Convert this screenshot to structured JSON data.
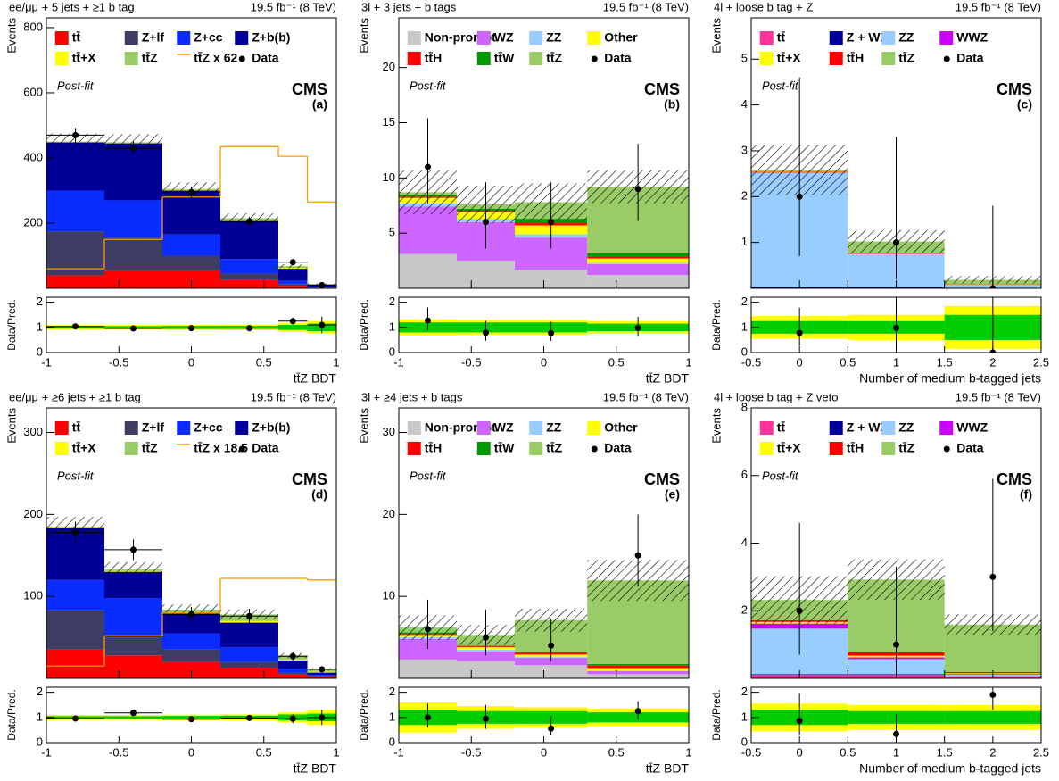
{
  "chart_data": [
    {
      "type": "histogram",
      "title": "ee/μμ + 5 jets + ≥1 b tag",
      "lumi": "19.5 fb⁻¹ (8 TeV)",
      "experiment": "CMS",
      "status": "Post-fit",
      "panel": "(a)",
      "ylabel": "Events",
      "xlabel": "tt̄Z BDT",
      "bins": [
        -1,
        -0.6,
        -0.2,
        0.2,
        0.6,
        0.8,
        1
      ],
      "xlim": [
        -1,
        1
      ],
      "xticks": [
        -1,
        -0.5,
        0,
        0.5,
        1
      ],
      "ylim": [
        0,
        830
      ],
      "yticks": [
        200,
        400,
        600,
        800
      ],
      "series": [
        {
          "name": "tt̄",
          "color": "#ff0000",
          "values": [
            40,
            55,
            55,
            25,
            8,
            2
          ]
        },
        {
          "name": "Z+lf",
          "color": "#3e3e64",
          "values": [
            135,
            100,
            45,
            20,
            5,
            1
          ]
        },
        {
          "name": "Z+cc",
          "color": "#0a2cff",
          "values": [
            125,
            115,
            65,
            45,
            10,
            2
          ]
        },
        {
          "name": "Z+b(b)",
          "color": "#000099",
          "values": [
            148,
            175,
            135,
            115,
            37,
            5
          ]
        },
        {
          "name": "tt̄+X",
          "color": "#ffff00",
          "values": [
            1,
            1,
            2,
            3,
            2,
            1
          ]
        },
        {
          "name": "tt̄Z",
          "color": "#99cc66",
          "values": [
            1,
            2,
            3,
            7,
            6,
            2
          ]
        }
      ],
      "overlay": {
        "name": "tt̄Z  x 62",
        "color": "#ff9900",
        "values": [
          60,
          150,
          280,
          435,
          405,
          265
        ]
      },
      "uncertainty": [
        25,
        25,
        20,
        15,
        6,
        2
      ],
      "data": {
        "name": "Data",
        "x": [
          -0.8,
          -0.4,
          0,
          0.4,
          0.7,
          0.9
        ],
        "values": [
          470,
          430,
          295,
          205,
          80,
          10
        ],
        "err_low": [
          22,
          21,
          17,
          14,
          9,
          3.3
        ],
        "err_high": [
          22,
          21,
          17,
          14,
          9,
          3.3
        ]
      },
      "data_xerr": true,
      "ratio": {
        "ylabel": "Data/Pred.",
        "ylim": [
          0,
          2.2
        ],
        "yticks": [
          0,
          1,
          2
        ],
        "values": [
          1.04,
          0.96,
          0.97,
          0.97,
          1.25,
          1.1
        ],
        "err_low": [
          0.05,
          0.05,
          0.06,
          0.07,
          0.14,
          0.33
        ],
        "err_high": [
          0.05,
          0.05,
          0.06,
          0.07,
          0.14,
          0.33
        ],
        "band_1sigma": [
          0.05,
          0.05,
          0.06,
          0.06,
          0.1,
          0.15
        ],
        "band_2sigma": [
          0.09,
          0.09,
          0.1,
          0.11,
          0.18,
          0.25
        ]
      }
    },
    {
      "type": "histogram",
      "title": "3l + 3 jets + b tags",
      "lumi": "19.5 fb⁻¹ (8 TeV)",
      "experiment": "CMS",
      "status": "Post-fit",
      "panel": "(b)",
      "ylabel": "Events",
      "xlabel": "tt̄Z BDT",
      "bins": [
        -1,
        -0.6,
        -0.2,
        0.3,
        1
      ],
      "xlim": [
        -1,
        1
      ],
      "xticks": [
        -1,
        -0.5,
        0,
        0.5,
        1
      ],
      "ylim": [
        0,
        24.5
      ],
      "yticks": [
        5,
        10,
        15,
        20
      ],
      "series": [
        {
          "name": "Non-prompt",
          "color": "#c8c8c8",
          "values": [
            3.1,
            2.5,
            1.7,
            1.2
          ]
        },
        {
          "name": "WZ",
          "color": "#cc66ff",
          "values": [
            4.3,
            3.5,
            2.9,
            1.0
          ]
        },
        {
          "name": "ZZ",
          "color": "#99ccff",
          "values": [
            0.3,
            0.3,
            0.3,
            0.1
          ]
        },
        {
          "name": "Other",
          "color": "#ffff00",
          "values": [
            0.5,
            0.6,
            0.8,
            0.4
          ]
        },
        {
          "name": "tt̄H",
          "color": "#ff0000",
          "values": [
            0.1,
            0.1,
            0.2,
            0.2
          ]
        },
        {
          "name": "tt̄W",
          "color": "#009900",
          "values": [
            0.2,
            0.2,
            0.4,
            0.3
          ]
        },
        {
          "name": "tt̄Z",
          "color": "#99cc66",
          "values": [
            0.2,
            0.4,
            1.5,
            6.0
          ]
        }
      ],
      "uncertainty": [
        2.0,
        1.7,
        1.7,
        1.5
      ],
      "data": {
        "name": "Data",
        "x": [
          -0.8,
          -0.4,
          0.05,
          0.65
        ],
        "values": [
          11,
          6,
          6,
          9
        ],
        "err_low": [
          3.3,
          2.4,
          2.4,
          2.9
        ],
        "err_high": [
          4.4,
          3.6,
          3.6,
          4.1
        ]
      },
      "data_xerr": false,
      "ratio": {
        "ylabel": "Data/Pred.",
        "ylim": [
          0,
          2.2
        ],
        "yticks": [
          0,
          1,
          2
        ],
        "values": [
          1.27,
          0.79,
          0.77,
          0.98
        ],
        "err_low": [
          0.38,
          0.32,
          0.31,
          0.32
        ],
        "err_high": [
          0.52,
          0.47,
          0.46,
          0.44
        ],
        "band_1sigma": [
          0.2,
          0.2,
          0.2,
          0.15
        ],
        "band_2sigma": [
          0.32,
          0.3,
          0.3,
          0.25
        ]
      }
    },
    {
      "type": "histogram",
      "title": "4l + loose b tag + Z",
      "lumi": "19.5 fb⁻¹ (8 TeV)",
      "experiment": "CMS",
      "status": "Post-fit",
      "panel": "(c)",
      "ylabel": "Events",
      "xlabel": "Number of medium b-tagged jets",
      "bins": [
        -0.5,
        0.5,
        1.5,
        2.5
      ],
      "xlim": [
        -0.5,
        2.5
      ],
      "xticks": [
        -0.5,
        0,
        0.5,
        1,
        1.5,
        2,
        2.5
      ],
      "ylim": [
        0,
        5.9
      ],
      "yticks": [
        1,
        2,
        3,
        4,
        5
      ],
      "series": [
        {
          "name": "tt̄",
          "color": "#ff3399",
          "values": [
            0.01,
            0.01,
            0.005
          ]
        },
        {
          "name": "Z + WZ",
          "color": "#000099",
          "values": [
            0.01,
            0.01,
            0.005
          ]
        },
        {
          "name": "ZZ",
          "color": "#99ccff",
          "values": [
            2.5,
            0.72,
            0.05
          ]
        },
        {
          "name": "WWZ",
          "color": "#cc00ff",
          "values": [
            0.01,
            0.01,
            0.005
          ]
        },
        {
          "name": "tt̄+X",
          "color": "#ffff00",
          "values": [
            0.01,
            0.01,
            0.01
          ]
        },
        {
          "name": "tt̄H",
          "color": "#ff0000",
          "values": [
            0.01,
            0.01,
            0.01
          ]
        },
        {
          "name": "tt̄Z",
          "color": "#99cc66",
          "values": [
            0.03,
            0.25,
            0.1
          ]
        }
      ],
      "uncertainty": [
        0.55,
        0.25,
        0.08
      ],
      "data": {
        "name": "Data",
        "x": [
          0,
          1,
          2
        ],
        "values": [
          2,
          1,
          0
        ],
        "err_low": [
          1.3,
          0.8,
          0
        ],
        "err_high": [
          2.6,
          2.3,
          1.8
        ]
      },
      "data_xerr": false,
      "ratio": {
        "ylabel": "Data/Pred.",
        "ylim": [
          0,
          2.2
        ],
        "yticks": [
          0,
          1,
          2
        ],
        "values": [
          0.78,
          0.98,
          0
        ],
        "err_low": [
          0.51,
          0.78,
          0
        ],
        "err_high": [
          1.0,
          2.25,
          12
        ],
        " band": null,
        "band_1sigma": [
          0.25,
          0.25,
          0.5
        ],
        "band_2sigma": [
          0.45,
          0.5,
          0.85
        ]
      }
    },
    {
      "type": "histogram",
      "title": "ee/μμ + ≥6 jets + ≥1 b tag",
      "lumi": "19.5 fb⁻¹ (8 TeV)",
      "experiment": "CMS",
      "status": "Post-fit",
      "panel": "(d)",
      "ylabel": "Events",
      "xlabel": "tt̄Z BDT",
      "bins": [
        -1,
        -0.6,
        -0.2,
        0.2,
        0.6,
        0.8,
        1
      ],
      "xlim": [
        -1,
        1
      ],
      "xticks": [
        -1,
        -0.5,
        0,
        0.5,
        1
      ],
      "ylim": [
        0,
        330
      ],
      "yticks": [
        100,
        200,
        300
      ],
      "series": [
        {
          "name": "tt̄",
          "color": "#ff0000",
          "values": [
            35,
            28,
            20,
            13,
            5,
            2
          ]
        },
        {
          "name": "Z+lf",
          "color": "#3e3e64",
          "values": [
            48,
            22,
            15,
            7,
            2,
            1
          ]
        },
        {
          "name": "Z+cc",
          "color": "#0a2cff",
          "values": [
            37,
            48,
            20,
            18,
            5,
            1
          ]
        },
        {
          "name": "Z+b(b)",
          "color": "#000099",
          "values": [
            63,
            32,
            24,
            30,
            10,
            3
          ]
        },
        {
          "name": "tt̄+X",
          "color": "#ffff00",
          "values": [
            1,
            1,
            1,
            2,
            1,
            1
          ]
        },
        {
          "name": "tt̄Z",
          "color": "#99cc66",
          "values": [
            1,
            2,
            4,
            8,
            5,
            3
          ]
        }
      ],
      "overlay": {
        "name": "tt̄Z  x 18.5",
        "color": "#ff9900",
        "values": [
          15,
          52,
          80,
          122,
          122,
          120
        ]
      },
      "uncertainty": [
        12,
        9,
        6,
        6,
        3,
        1.5
      ],
      "data": {
        "name": "Data",
        "x": [
          -0.8,
          -0.4,
          0,
          0.4,
          0.7,
          0.9
        ],
        "values": [
          178,
          157,
          78,
          76,
          27,
          11
        ],
        "err_low": [
          13,
          12.5,
          9,
          9,
          5.2,
          3.3
        ],
        "err_high": [
          13,
          12.5,
          9,
          9,
          5.2,
          3.3
        ]
      },
      "data_xerr": true,
      "ratio": {
        "ylabel": "Data/Pred.",
        "ylim": [
          0,
          2.2
        ],
        "yticks": [
          0,
          1,
          2
        ],
        "values": [
          0.96,
          1.18,
          0.93,
          0.98,
          0.95,
          1.0
        ],
        "err_low": [
          0.07,
          0.09,
          0.1,
          0.11,
          0.18,
          0.3
        ],
        "err_high": [
          0.07,
          0.09,
          0.1,
          0.11,
          0.18,
          0.3
        ],
        "band_1sigma": [
          0.05,
          0.05,
          0.06,
          0.07,
          0.12,
          0.15
        ],
        "band_2sigma": [
          0.1,
          0.1,
          0.11,
          0.12,
          0.2,
          0.3
        ]
      }
    },
    {
      "type": "histogram",
      "title": "3l + ≥4 jets + b tags",
      "lumi": "19.5 fb⁻¹ (8 TeV)",
      "experiment": "CMS",
      "status": "Post-fit",
      "panel": "(e)",
      "ylabel": "Events",
      "xlabel": "tt̄Z BDT",
      "bins": [
        -1,
        -0.6,
        -0.2,
        0.3,
        1
      ],
      "xlim": [
        -1,
        1
      ],
      "xticks": [
        -1,
        -0.5,
        0,
        0.5,
        1
      ],
      "ylim": [
        0,
        33
      ],
      "yticks": [
        10,
        20,
        30
      ],
      "series": [
        {
          "name": "Non-prompt",
          "color": "#c8c8c8",
          "values": [
            2.3,
            2.1,
            1.6,
            0.5
          ]
        },
        {
          "name": "WZ",
          "color": "#cc66ff",
          "values": [
            2.5,
            1.2,
            0.9,
            0.4
          ]
        },
        {
          "name": "ZZ",
          "color": "#99ccff",
          "values": [
            0.2,
            0.2,
            0.1,
            0.05
          ]
        },
        {
          "name": "Other",
          "color": "#ffff00",
          "values": [
            0.3,
            0.3,
            0.3,
            0.3
          ]
        },
        {
          "name": "tt̄H",
          "color": "#ff0000",
          "values": [
            0.1,
            0.1,
            0.2,
            0.3
          ]
        },
        {
          "name": "tt̄W",
          "color": "#009900",
          "values": [
            0.2,
            0.1,
            0.1,
            0.2
          ]
        },
        {
          "name": "tt̄Z",
          "color": "#99cc66",
          "values": [
            0.6,
            1.3,
            3.9,
            10.2
          ]
        }
      ],
      "uncertainty": [
        1.5,
        1.2,
        1.4,
        2.5
      ],
      "data": {
        "name": "Data",
        "x": [
          -0.8,
          -0.4,
          0.05,
          0.65
        ],
        "values": [
          6,
          5,
          4,
          15
        ],
        "err_low": [
          2.4,
          2.2,
          1.9,
          3.8
        ],
        "err_high": [
          3.6,
          3.4,
          3.2,
          5.0
        ]
      },
      "data_xerr": false,
      "ratio": {
        "ylabel": "Data/Pred.",
        "ylim": [
          0,
          2.2
        ],
        "yticks": [
          0,
          1,
          2
        ],
        "values": [
          1.0,
          0.95,
          0.56,
          1.25
        ],
        "err_low": [
          0.4,
          0.4,
          0.28,
          0.33
        ],
        "err_high": [
          0.55,
          0.55,
          0.5,
          0.4
        ],
        "band_1sigma": [
          0.3,
          0.25,
          0.25,
          0.2
        ],
        "band_2sigma": [
          0.6,
          0.45,
          0.4,
          0.35
        ]
      }
    },
    {
      "type": "histogram",
      "title": "4l + loose b tag + Z veto",
      "lumi": "19.5 fb⁻¹ (8 TeV)",
      "experiment": "CMS",
      "status": "Post-fit",
      "panel": "(f)",
      "ylabel": "Events",
      "xlabel": "Number of medium b-tagged jets",
      "bins": [
        -0.5,
        0.5,
        1.5,
        2.5
      ],
      "xlim": [
        -0.5,
        2.5
      ],
      "xticks": [
        -0.5,
        0,
        0.5,
        1,
        1.5,
        2,
        2.5
      ],
      "ylim": [
        0,
        8
      ],
      "yticks": [
        2,
        4,
        6,
        8
      ],
      "series": [
        {
          "name": "tt̄",
          "color": "#ff3399",
          "values": [
            0.1,
            0.1,
            0.05
          ]
        },
        {
          "name": "Z + WZ",
          "color": "#000099",
          "values": [
            0.02,
            0.02,
            0.01
          ]
        },
        {
          "name": "ZZ",
          "color": "#99ccff",
          "values": [
            1.35,
            0.45,
            0.05
          ]
        },
        {
          "name": "WWZ",
          "color": "#cc00ff",
          "values": [
            0.15,
            0.05,
            0.02
          ]
        },
        {
          "name": "tt̄+X",
          "color": "#ffff00",
          "values": [
            0.05,
            0.05,
            0.02
          ]
        },
        {
          "name": "tt̄H",
          "color": "#ff0000",
          "values": [
            0.05,
            0.1,
            0.04
          ]
        },
        {
          "name": "tt̄Z",
          "color": "#99cc66",
          "values": [
            0.6,
            2.15,
            1.4
          ]
        }
      ],
      "uncertainty": [
        0.7,
        0.6,
        0.3
      ],
      "data": {
        "name": "Data",
        "x": [
          0,
          1,
          2
        ],
        "values": [
          2,
          1,
          3
        ],
        "err_low": [
          1.3,
          0.8,
          1.6
        ],
        "err_high": [
          2.6,
          2.3,
          2.9
        ]
      },
      "data_xerr": false,
      "ratio": {
        "ylabel": "Data/Pred.",
        "ylim": [
          0,
          2.2
        ],
        "yticks": [
          0,
          1,
          2
        ],
        "values": [
          0.87,
          0.34,
          1.9
        ],
        "err_low": [
          0.56,
          0.28,
          0.6
        ],
        "err_high": [
          1.1,
          0.8,
          1.2
        ],
        "band_1sigma": [
          0.3,
          0.25,
          0.25
        ],
        "band_2sigma": [
          0.55,
          0.5,
          0.5
        ]
      }
    }
  ]
}
